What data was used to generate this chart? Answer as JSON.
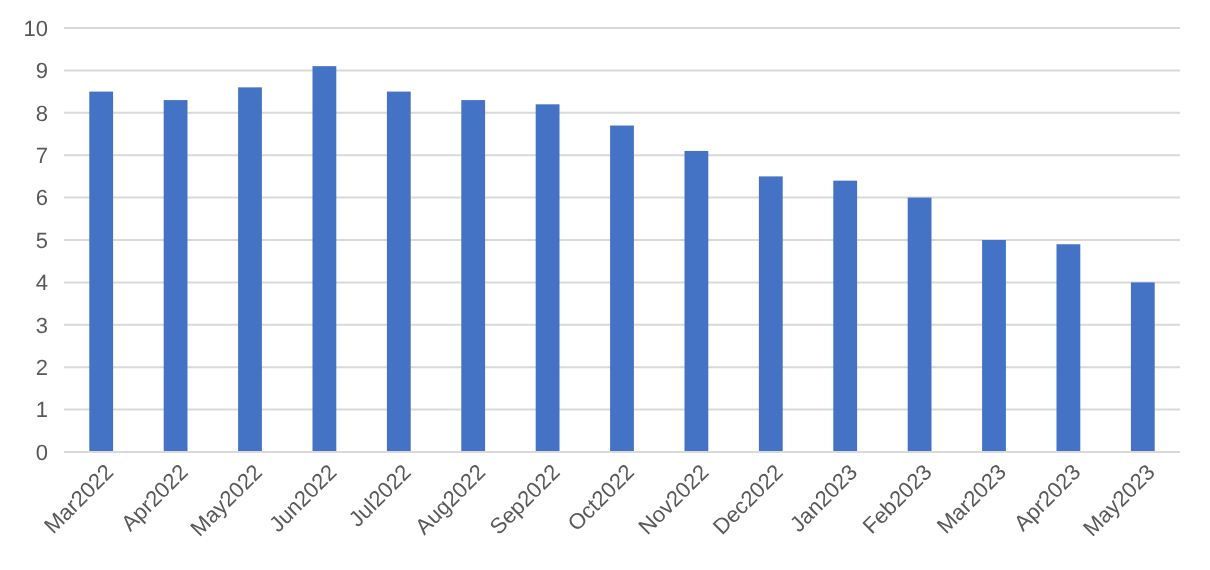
{
  "chart_data": {
    "type": "bar",
    "categories": [
      "Mar2022",
      "Apr2022",
      "May2022",
      "Jun2022",
      "Jul2022",
      "Aug2022",
      "Sep2022",
      "Oct2022",
      "Nov2022",
      "Dec2022",
      "Jan2023",
      "Feb2023",
      "Mar2023",
      "Apr2023",
      "May2023"
    ],
    "values": [
      8.5,
      8.3,
      8.6,
      9.1,
      8.5,
      8.3,
      8.2,
      7.7,
      7.1,
      6.5,
      6.4,
      6.0,
      5.0,
      4.9,
      4.0
    ],
    "color": "#4472c4",
    "ylim": [
      0,
      10
    ],
    "yticks": [
      0,
      1,
      2,
      3,
      4,
      5,
      6,
      7,
      8,
      9,
      10
    ],
    "grid": "y"
  }
}
